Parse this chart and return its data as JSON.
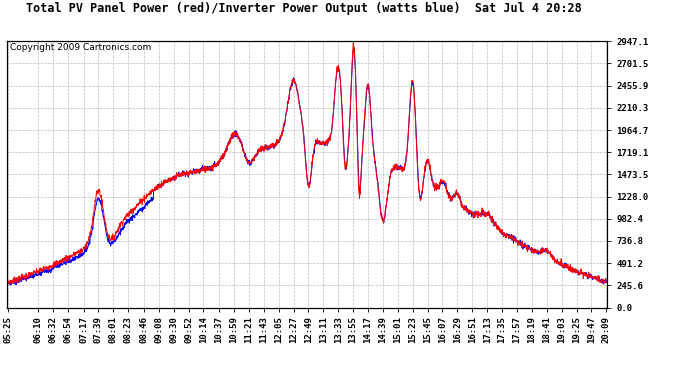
{
  "title": "Total PV Panel Power (red)/Inverter Power Output (watts blue)  Sat Jul 4 20:28",
  "copyright": "Copyright 2009 Cartronics.com",
  "y_ticks": [
    0.0,
    245.6,
    491.2,
    736.8,
    982.4,
    1228.0,
    1473.5,
    1719.1,
    1964.7,
    2210.3,
    2455.9,
    2701.5,
    2947.1
  ],
  "x_labels": [
    "05:25",
    "06:10",
    "06:32",
    "06:54",
    "07:17",
    "07:39",
    "08:01",
    "08:23",
    "08:46",
    "09:08",
    "09:30",
    "09:52",
    "10:14",
    "10:37",
    "10:59",
    "11:21",
    "11:43",
    "12:05",
    "12:27",
    "12:49",
    "13:11",
    "13:33",
    "13:55",
    "14:17",
    "14:39",
    "15:01",
    "15:23",
    "15:45",
    "16:07",
    "16:29",
    "16:51",
    "17:13",
    "17:35",
    "17:57",
    "18:19",
    "18:41",
    "19:03",
    "19:25",
    "19:47",
    "20:09"
  ],
  "pv_color": "#ff0000",
  "inv_color": "#0000ff",
  "bg_color": "#ffffff",
  "plot_bg_color": "#ffffff",
  "grid_color": "#bbbbbb",
  "title_fontsize": 8.5,
  "copyright_fontsize": 6.5,
  "tick_fontsize": 6.5,
  "linewidth": 0.7,
  "ylim": [
    0.0,
    2947.1
  ]
}
